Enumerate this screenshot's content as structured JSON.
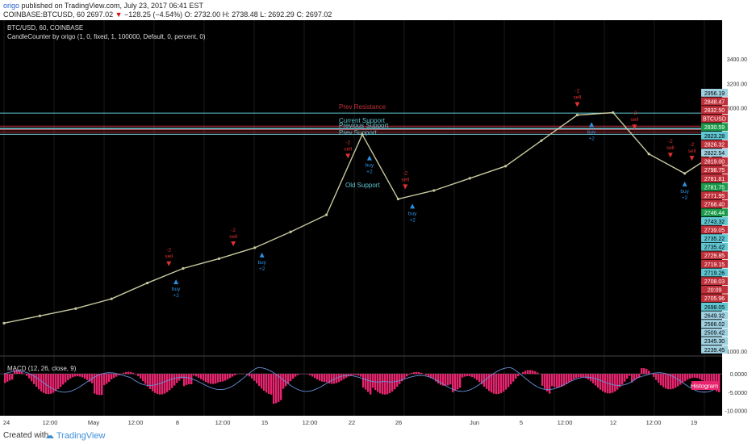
{
  "header": {
    "publisher": "origo",
    "published_text": "published on TradingView.com, July 23, 2017 06:41 EST",
    "symbol_line": "COINBASE:BTCUSD, 60",
    "last": "2697.02",
    "change": "−128.25 (−4.54%)",
    "open": "O: 2732.00",
    "high": "H: 2738.48",
    "low": "L: 2692.29",
    "close": "C: 2697.02"
  },
  "chart_title": "BTC/USD, 60, COINBASE",
  "indicator_title": "CandleCounter by origo (1, 0, fixed, 1, 100000, Default, 0, percent, 0)",
  "macd_title": "MACD (12, 26, close, 9)",
  "macd_badge": "Histogram",
  "footer": {
    "created_with": "Created with",
    "brand": "TradingView"
  },
  "colors": {
    "background": "#000000",
    "resistance": "#c0303a",
    "support": "#5fc6d2",
    "price_line": "#c8c8a0",
    "histogram": "#e8246e",
    "macd_line": "#6a8fd8"
  },
  "chart_data": {
    "type": "line",
    "title": "BTC/USD, 60, COINBASE",
    "x_tick_labels": [
      "24",
      "12:00",
      "May",
      "12:00",
      "8",
      "12:00",
      "15",
      "12:00",
      "22",
      "26",
      "Jun",
      "5",
      "12:00",
      "12",
      "12:00",
      "19"
    ],
    "price_axis_labels": [
      "3400.00",
      "3200.00",
      "3000.00",
      "1000.00"
    ],
    "ylim": [
      1000,
      3600
    ],
    "series": [
      {
        "name": "BTCUSD",
        "x": [
          0,
          5,
          10,
          15,
          20,
          25,
          30,
          35,
          40,
          45,
          50,
          55,
          60,
          65,
          70,
          75,
          80,
          85,
          90,
          95,
          100
        ],
        "values": [
          1230,
          1290,
          1350,
          1430,
          1560,
          1680,
          1760,
          1850,
          1980,
          2120,
          2780,
          2250,
          2320,
          2420,
          2520,
          2730,
          2940,
          2960,
          2620,
          2460,
          2650
        ]
      }
    ],
    "horizontal_levels": [
      {
        "value": "2956.19",
        "kind": "support"
      },
      {
        "value": "2848.47",
        "kind": "resistance"
      },
      {
        "value": "2832.50",
        "kind": "resistance"
      },
      {
        "value": "2830.59",
        "kind": "support"
      },
      {
        "value": "2823.28",
        "kind": "support"
      },
      {
        "value": "2822.54",
        "kind": "support"
      },
      {
        "value": "2819.00",
        "kind": "resistance"
      },
      {
        "value": "2798.75",
        "kind": "resistance"
      },
      {
        "value": "2781.81",
        "kind": "resistance"
      },
      {
        "value": "2781.75",
        "kind": "support"
      }
    ],
    "right_axis_badges": [
      {
        "label": "2956.19",
        "color": "#9fd0e0"
      },
      {
        "label": "2848.47",
        "color": "#c0303a"
      },
      {
        "label": "2832.50",
        "color": "#c0303a"
      },
      {
        "label": "BTCUSD",
        "color": "#c0303a"
      },
      {
        "label": "2830.59",
        "color": "#1a9a4a"
      },
      {
        "label": "2823.28",
        "color": "#5fc6d2"
      },
      {
        "label": "2826.32",
        "color": "#c0303a"
      },
      {
        "label": "2822.54",
        "color": "#9fd0e0"
      },
      {
        "label": "2819.00",
        "color": "#c0303a"
      },
      {
        "label": "2798.75",
        "color": "#c0303a"
      },
      {
        "label": "2781.81",
        "color": "#c0303a"
      },
      {
        "label": "2781.75",
        "color": "#1a9a4a"
      },
      {
        "label": "2771.95",
        "color": "#c0303a"
      },
      {
        "label": "2768.40",
        "color": "#c0303a"
      },
      {
        "label": "2746.44",
        "color": "#1a9a4a"
      },
      {
        "label": "2743.32",
        "color": "#5fc6d2"
      },
      {
        "label": "2739.05",
        "color": "#c0303a"
      },
      {
        "label": "2735.22",
        "color": "#5fc6d2"
      },
      {
        "label": "2735.42",
        "color": "#5fc6d2"
      },
      {
        "label": "2729.85",
        "color": "#c0303a"
      },
      {
        "label": "2719.15",
        "color": "#c0303a"
      },
      {
        "label": "2719.26",
        "color": "#5fc6d2"
      },
      {
        "label": "2708.03",
        "color": "#c0303a"
      },
      {
        "label": "20:09",
        "color": "#c0303a"
      },
      {
        "label": "2705.96",
        "color": "#c0303a"
      },
      {
        "label": "2698.05",
        "color": "#5fc6d2"
      },
      {
        "label": "2649.32",
        "color": "#9fd0e0"
      },
      {
        "label": "2566.02",
        "color": "#9fd0e0"
      },
      {
        "label": "2509.42",
        "color": "#9fd0e0"
      },
      {
        "label": "2345.30",
        "color": "#9fd0e0"
      },
      {
        "label": "2239.45",
        "color": "#9fd0e0"
      }
    ],
    "level_labels": [
      "Prev Resistance",
      "Current Support",
      "Previous Support",
      "Prev Support",
      "Old Support"
    ],
    "markers": [
      {
        "type": "sell",
        "x": 23,
        "text": "-2",
        "label": "sell"
      },
      {
        "type": "buy",
        "x": 24,
        "text": "buy",
        "label": "+2"
      },
      {
        "type": "sell",
        "x": 32,
        "text": "-2",
        "label": "sell"
      },
      {
        "type": "buy",
        "x": 36,
        "text": "buy",
        "label": "+2"
      },
      {
        "type": "sell",
        "x": 48,
        "text": "-2",
        "label": "sell"
      },
      {
        "type": "buy",
        "x": 51,
        "text": "buy",
        "label": "+2"
      },
      {
        "type": "sell",
        "x": 56,
        "text": "-2",
        "label": "sell"
      },
      {
        "type": "buy",
        "x": 57,
        "text": "buy",
        "label": "+2"
      },
      {
        "type": "sell",
        "x": 80,
        "text": "-2",
        "label": "sell"
      },
      {
        "type": "buy",
        "x": 82,
        "text": "buy",
        "label": "+2"
      },
      {
        "type": "sell",
        "x": 88,
        "text": "-2",
        "label": "sell"
      },
      {
        "type": "sell",
        "x": 93,
        "text": "-2",
        "label": "sell"
      },
      {
        "type": "buy",
        "x": 95,
        "text": "buy",
        "label": "+2"
      },
      {
        "type": "sell",
        "x": 96,
        "text": "-2",
        "label": "sell"
      },
      {
        "type": "buy",
        "x": 126,
        "text": "buy",
        "label": "+2"
      },
      {
        "type": "sell",
        "x": 131,
        "text": "-2",
        "label": "sell"
      },
      {
        "type": "buy",
        "x": 134,
        "text": "buy",
        "label": "+2"
      },
      {
        "type": "sell",
        "x": 147,
        "text": "-2",
        "label": "sell"
      },
      {
        "type": "buy",
        "x": 148,
        "text": "buy",
        "label": "+2"
      }
    ],
    "macd": {
      "axis_labels": [
        "0.0000",
        "-5.0000",
        "-10.0000"
      ],
      "ylim": [
        -11,
        4
      ]
    }
  }
}
